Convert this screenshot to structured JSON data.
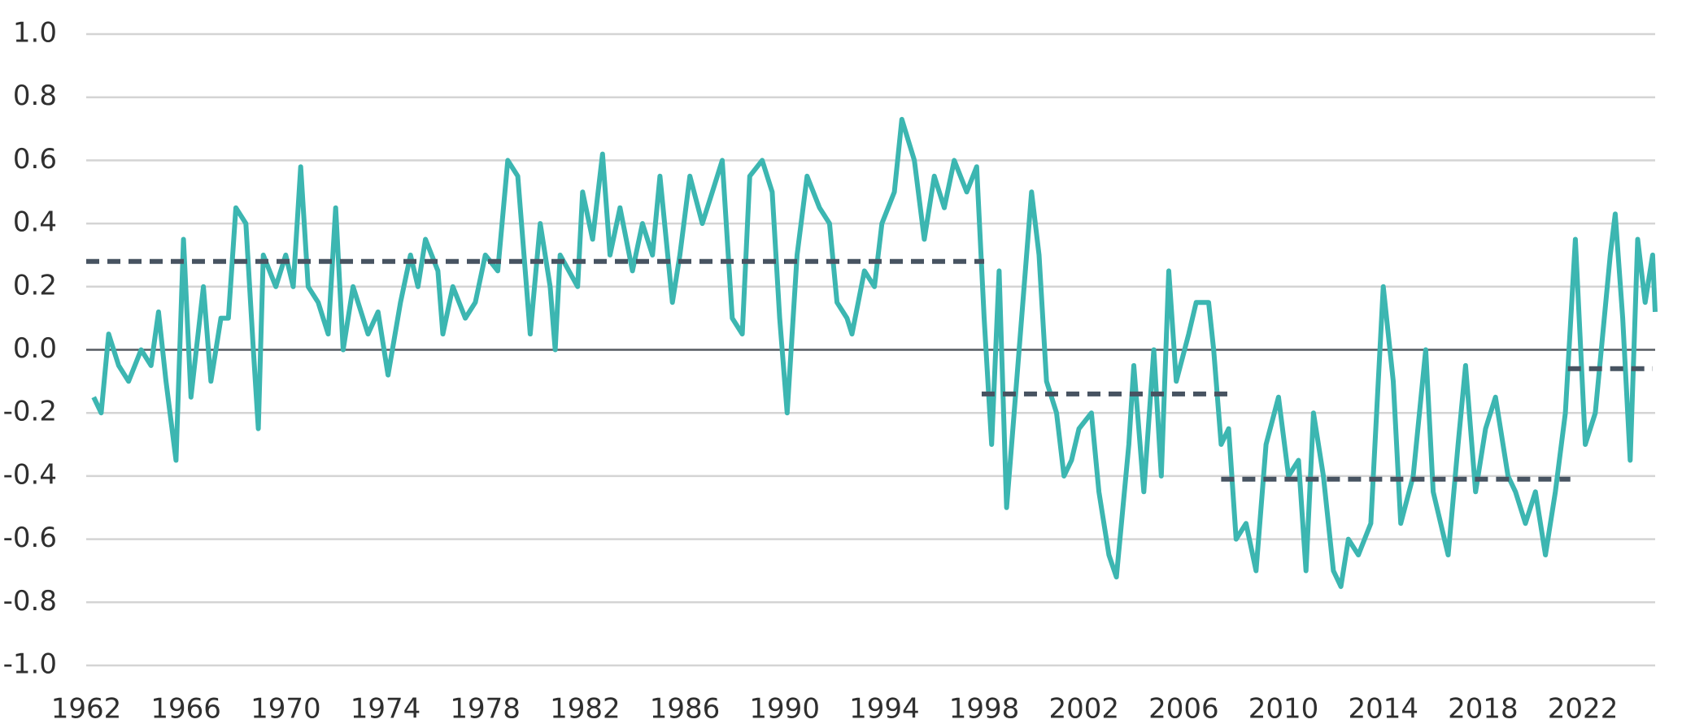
{
  "chart_data": {
    "type": "line",
    "x": [
      1962.3,
      1962.6,
      1962.9,
      1963.3,
      1963.7,
      1964.2,
      1964.6,
      1964.9,
      1965.2,
      1965.6,
      1965.9,
      1966.2,
      1966.7,
      1967.0,
      1967.4,
      1967.7,
      1968.0,
      1968.4,
      1968.7,
      1968.9,
      1969.1,
      1969.6,
      1970.0,
      1970.3,
      1970.6,
      1970.9,
      1971.3,
      1971.7,
      1972.0,
      1972.3,
      1972.7,
      1973.3,
      1973.7,
      1974.1,
      1974.6,
      1975.0,
      1975.3,
      1975.6,
      1976.1,
      1976.3,
      1976.7,
      1977.2,
      1977.6,
      1978.0,
      1978.5,
      1978.9,
      1979.3,
      1979.8,
      1980.2,
      1980.6,
      1980.8,
      1981.0,
      1981.7,
      1981.9,
      1982.3,
      1982.7,
      1983.0,
      1983.4,
      1983.9,
      1984.3,
      1984.7,
      1985.0,
      1985.5,
      1985.8,
      1986.2,
      1986.7,
      1987.1,
      1987.5,
      1987.9,
      1988.3,
      1988.6,
      1989.1,
      1989.5,
      1989.8,
      1990.1,
      1990.5,
      1990.9,
      1991.4,
      1991.8,
      1992.1,
      1992.5,
      1992.7,
      1993.2,
      1993.6,
      1993.9,
      1994.4,
      1994.7,
      1995.2,
      1995.6,
      1996.0,
      1996.4,
      1996.8,
      1997.3,
      1997.7,
      1998.0,
      1998.3,
      1998.6,
      1998.9,
      1999.1,
      1999.4,
      1999.9,
      2000.2,
      2000.5,
      2000.9,
      2001.2,
      2001.5,
      2001.8,
      2002.3,
      2002.6,
      2003.0,
      2003.3,
      2003.8,
      2004.0,
      2004.4,
      2004.8,
      2005.1,
      2005.4,
      2005.7,
      2006.2,
      2006.5,
      2007.0,
      2007.2,
      2007.5,
      2007.8,
      2008.1,
      2008.5,
      2008.9,
      2009.3,
      2009.8,
      2010.2,
      2010.6,
      2010.9,
      2011.2,
      2011.6,
      2012.0,
      2012.3,
      2012.6,
      2013.0,
      2013.5,
      2014.0,
      2014.4,
      2014.7,
      2015.2,
      2015.7,
      2016.0,
      2016.6,
      2017.0,
      2017.3,
      2017.7,
      2018.1,
      2018.5,
      2019.0,
      2019.3,
      2019.7,
      2020.1,
      2020.5,
      2020.9,
      2021.3,
      2021.7,
      2022.1,
      2022.5,
      2023.1,
      2023.3,
      2023.6,
      2023.9,
      2024.2,
      2024.5,
      2024.8,
      2024.9
    ],
    "series": [
      {
        "color": "#3cb6b1",
        "values": [
          -0.15,
          -0.2,
          0.05,
          -0.05,
          -0.1,
          0.0,
          -0.05,
          0.12,
          -0.1,
          -0.35,
          0.35,
          -0.15,
          0.2,
          -0.1,
          0.1,
          0.1,
          0.45,
          0.4,
          0.0,
          -0.25,
          0.3,
          0.2,
          0.3,
          0.2,
          0.58,
          0.2,
          0.15,
          0.05,
          0.45,
          0.0,
          0.2,
          0.05,
          0.12,
          -0.08,
          0.15,
          0.3,
          0.2,
          0.35,
          0.25,
          0.05,
          0.2,
          0.1,
          0.15,
          0.3,
          0.25,
          0.6,
          0.55,
          0.05,
          0.4,
          0.2,
          0.0,
          0.3,
          0.2,
          0.5,
          0.35,
          0.62,
          0.3,
          0.45,
          0.25,
          0.4,
          0.3,
          0.55,
          0.15,
          0.3,
          0.55,
          0.4,
          0.5,
          0.6,
          0.1,
          0.05,
          0.55,
          0.6,
          0.5,
          0.1,
          -0.2,
          0.3,
          0.55,
          0.45,
          0.4,
          0.15,
          0.1,
          0.05,
          0.25,
          0.2,
          0.4,
          0.5,
          0.73,
          0.6,
          0.35,
          0.55,
          0.45,
          0.6,
          0.5,
          0.58,
          0.1,
          -0.3,
          0.25,
          -0.5,
          -0.3,
          0.0,
          0.5,
          0.3,
          -0.1,
          -0.2,
          -0.4,
          -0.35,
          -0.25,
          -0.2,
          -0.45,
          -0.65,
          -0.72,
          -0.3,
          -0.05,
          -0.45,
          0.0,
          -0.4,
          0.25,
          -0.1,
          0.05,
          0.15,
          0.15,
          0.0,
          -0.3,
          -0.25,
          -0.6,
          -0.55,
          -0.7,
          -0.3,
          -0.15,
          -0.4,
          -0.35,
          -0.7,
          -0.2,
          -0.4,
          -0.7,
          -0.75,
          -0.6,
          -0.65,
          -0.55,
          0.2,
          -0.1,
          -0.55,
          -0.4,
          0.0,
          -0.45,
          -0.65,
          -0.3,
          -0.05,
          -0.45,
          -0.25,
          -0.15,
          -0.4,
          -0.45,
          -0.55,
          -0.45,
          -0.65,
          -0.45,
          -0.2,
          0.35,
          -0.3,
          -0.2,
          0.3,
          0.43,
          0.1,
          -0.35,
          0.35,
          0.15,
          0.3,
          0.12
        ]
      }
    ],
    "averages": {
      "color": "#475361",
      "segments": [
        {
          "x": [
            1962,
            1998.0
          ],
          "value": 0.28
        },
        {
          "x": [
            1997.9,
            2007.8
          ],
          "value": -0.14
        },
        {
          "x": [
            2007.5,
            2021.5
          ],
          "value": -0.41
        },
        {
          "x": [
            2021.4,
            2024.8
          ],
          "value": -0.06
        }
      ]
    },
    "xlim": [
      1962,
      2024.9
    ],
    "xticks": [
      1962,
      1966,
      1970,
      1974,
      1978,
      1982,
      1986,
      1990,
      1994,
      1998,
      2002,
      2006,
      2010,
      2014,
      2018,
      2022
    ],
    "ylim": [
      -1,
      1
    ],
    "yticks": [
      {
        "value": -1,
        "label": "-1.0"
      },
      -0.8,
      -0.6,
      -0.4,
      -0.2,
      {
        "value": 0,
        "label": "0.0"
      },
      0.2,
      0.4,
      0.6,
      0.8,
      {
        "value": 1,
        "label": "1.0"
      }
    ],
    "grid": true
  }
}
